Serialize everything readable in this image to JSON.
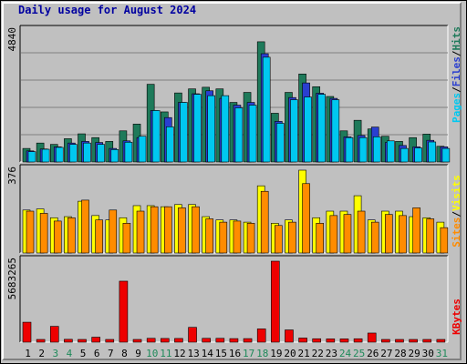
{
  "title": "Daily usage for August 2024",
  "colors": {
    "hits": "#1e7a5a",
    "files": "#2a3fd0",
    "pages": "#00c8f0",
    "visits": "#ffff00",
    "sites": "#ff8c00",
    "kbytes": "#ee0000",
    "weekend_label": "#1e8a5a",
    "weekday_label": "#000000"
  },
  "chart_data": [
    {
      "type": "bar",
      "panel": "hits_files_pages",
      "y_max_label": "4840",
      "ylim": [
        0,
        4840
      ],
      "categories": [
        "1",
        "2",
        "3",
        "4",
        "5",
        "6",
        "7",
        "8",
        "9",
        "10",
        "11",
        "12",
        "13",
        "14",
        "15",
        "16",
        "17",
        "18",
        "19",
        "20",
        "21",
        "22",
        "23",
        "24",
        "25",
        "26",
        "27",
        "28",
        "29",
        "30",
        "31"
      ],
      "weekend_days": [
        "3",
        "4",
        "10",
        "11",
        "17",
        "18",
        "24",
        "25",
        "31"
      ],
      "series": [
        {
          "name": "Hits",
          "values": [
            500,
            700,
            650,
            860,
            1040,
            900,
            760,
            1150,
            1400,
            2870,
            1850,
            2550,
            2700,
            2760,
            2700,
            2200,
            2570,
            4440,
            1800,
            2570,
            3250,
            2780,
            2420,
            1150,
            1540,
            1220,
            950,
            760,
            900,
            1030,
            580
          ]
        },
        {
          "name": "Files",
          "values": [
            410,
            480,
            560,
            700,
            760,
            720,
            500,
            780,
            900,
            1900,
            1640,
            2200,
            2520,
            2630,
            2350,
            2100,
            2200,
            4000,
            1500,
            2380,
            2920,
            2540,
            2350,
            930,
            980,
            1290,
            720,
            610,
            560,
            800,
            560
          ]
        },
        {
          "name": "Pages",
          "values": [
            380,
            470,
            540,
            650,
            700,
            650,
            460,
            730,
            950,
            1900,
            1300,
            2200,
            2500,
            2450,
            2450,
            2000,
            2100,
            3870,
            1430,
            2300,
            2400,
            2500,
            2300,
            900,
            900,
            930,
            780,
            500,
            520,
            740,
            500
          ]
        }
      ]
    },
    {
      "type": "bar",
      "panel": "visits_sites",
      "y_max_label": "376",
      "ylim": [
        0,
        376
      ],
      "categories": [
        "1",
        "2",
        "3",
        "4",
        "5",
        "6",
        "7",
        "8",
        "9",
        "10",
        "11",
        "12",
        "13",
        "14",
        "15",
        "16",
        "17",
        "18",
        "19",
        "20",
        "21",
        "22",
        "23",
        "24",
        "25",
        "26",
        "27",
        "28",
        "29",
        "30",
        "31"
      ],
      "series": [
        {
          "name": "Visits",
          "values": [
            195,
            200,
            160,
            165,
            235,
            170,
            150,
            160,
            215,
            215,
            210,
            220,
            220,
            165,
            150,
            150,
            140,
            305,
            135,
            150,
            376,
            160,
            190,
            190,
            260,
            150,
            190,
            190,
            165,
            160,
            140
          ]
        },
        {
          "name": "Sites",
          "values": [
            190,
            180,
            145,
            160,
            240,
            150,
            195,
            135,
            190,
            210,
            210,
            205,
            210,
            155,
            140,
            145,
            135,
            280,
            125,
            140,
            315,
            135,
            170,
            175,
            190,
            140,
            175,
            170,
            205,
            155,
            115
          ]
        }
      ]
    },
    {
      "type": "bar",
      "panel": "kbytes",
      "y_max_label": "5683265",
      "ylim": [
        0,
        5683265
      ],
      "categories": [
        "1",
        "2",
        "3",
        "4",
        "5",
        "6",
        "7",
        "8",
        "9",
        "10",
        "11",
        "12",
        "13",
        "14",
        "15",
        "16",
        "17",
        "18",
        "19",
        "20",
        "21",
        "22",
        "23",
        "24",
        "25",
        "26",
        "27",
        "28",
        "29",
        "30",
        "31"
      ],
      "series": [
        {
          "name": "KBytes",
          "values": [
            1400000,
            60000,
            1110000,
            200000,
            190000,
            350000,
            110000,
            4280000,
            60000,
            270000,
            260000,
            260000,
            1040000,
            270000,
            270000,
            250000,
            250000,
            930000,
            5683265,
            860000,
            290000,
            240000,
            230000,
            230000,
            240000,
            640000,
            170000,
            150000,
            110000,
            130000,
            130000
          ]
        }
      ]
    }
  ],
  "legend": {
    "top": [
      "Pages",
      "/",
      "Files",
      "/",
      "Hits"
    ],
    "middle": [
      "Sites",
      "/",
      "Visits"
    ],
    "bottom": [
      "KBytes"
    ]
  }
}
